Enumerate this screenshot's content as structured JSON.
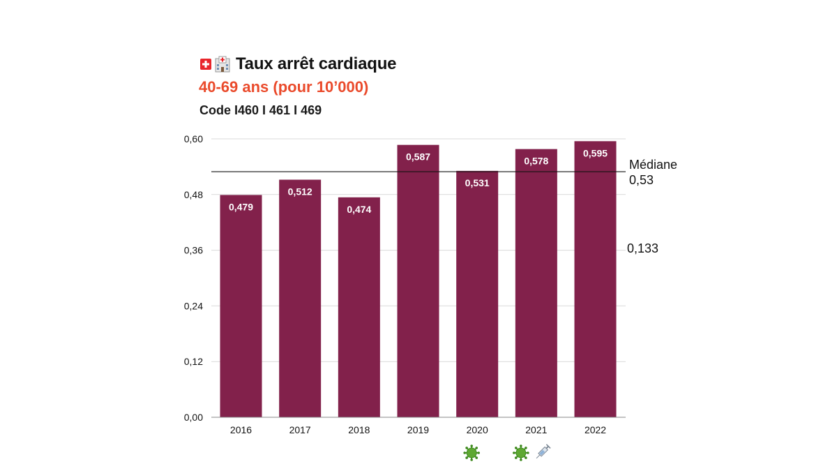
{
  "header": {
    "title": "Taux arrêt cardiaque",
    "subtitle": "40-69 ans (pour 10’000)",
    "code": "Code I460 I 461 I 469",
    "flag_icon": "swiss-flag-icon",
    "hospital_icon": "hospital-icon"
  },
  "colors": {
    "bar": "#82214b",
    "subtitle": "#ea4a2b",
    "grid": "#d9d9d9",
    "median_line": "#111111"
  },
  "chart_data": {
    "type": "bar",
    "title": "Taux arrêt cardiaque",
    "subtitle": "40-69 ans (pour 10’000)",
    "categories": [
      "2016",
      "2017",
      "2018",
      "2019",
      "2020",
      "2021",
      "2022"
    ],
    "values": [
      0.479,
      0.512,
      0.474,
      0.587,
      0.531,
      0.578,
      0.595
    ],
    "value_labels": [
      "0,479",
      "0,512",
      "0,474",
      "0,587",
      "0,531",
      "0,578",
      "0,595"
    ],
    "y_ticks": [
      0,
      0.12,
      0.24,
      0.36,
      0.48,
      0.6
    ],
    "y_tick_labels": [
      "0,00",
      "0,12",
      "0,24",
      "0,36",
      "0,48",
      "0,60"
    ],
    "ylim": [
      0,
      0.6
    ],
    "xlabel": "",
    "ylabel": "",
    "grid": true,
    "median": {
      "value": 0.53,
      "label": "Médiane",
      "value_label": "0,53"
    },
    "side_note": "0,133",
    "category_icons": [
      {
        "category": "2020",
        "icons": [
          "virus-icon"
        ]
      },
      {
        "category": "2021",
        "icons": [
          "virus-icon",
          "syringe-icon"
        ]
      }
    ]
  }
}
